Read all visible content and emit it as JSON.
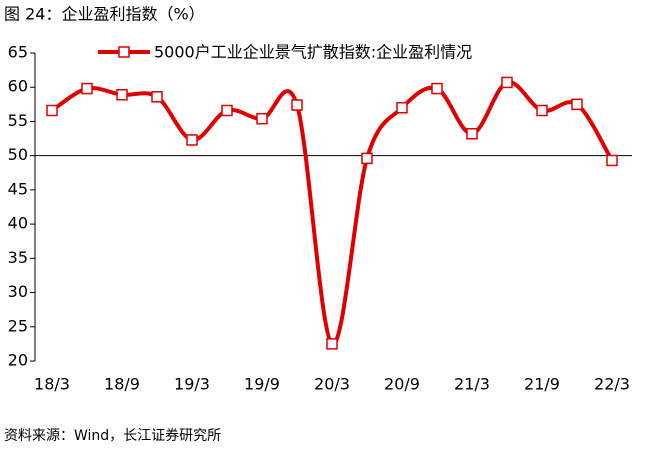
{
  "chart_data": {
    "type": "line",
    "title": "图 24：企业盈利指数（%）",
    "source": "资料来源：Wind，长江证券研究所",
    "categories": [
      "18/3",
      null,
      "18/9",
      null,
      "19/3",
      null,
      "19/9",
      null,
      "20/3",
      null,
      "20/9",
      null,
      "21/3",
      null,
      "21/9",
      null,
      "22/3"
    ],
    "series": [
      {
        "name": "5000户工业企业景气扩散指数:企业盈利情况",
        "color": "#e00000",
        "values": [
          56.6,
          59.8,
          58.9,
          58.6,
          52.3,
          56.6,
          55.4,
          57.4,
          22.5,
          49.6,
          57.0,
          59.8,
          53.2,
          60.7,
          56.6,
          57.5,
          49.3
        ]
      }
    ],
    "ylim": [
      20,
      65
    ],
    "yticks": [
      20,
      25,
      30,
      35,
      40,
      45,
      50,
      55,
      60,
      65
    ],
    "x_axis_crossing": 50,
    "smooth": true,
    "legend": "top"
  }
}
